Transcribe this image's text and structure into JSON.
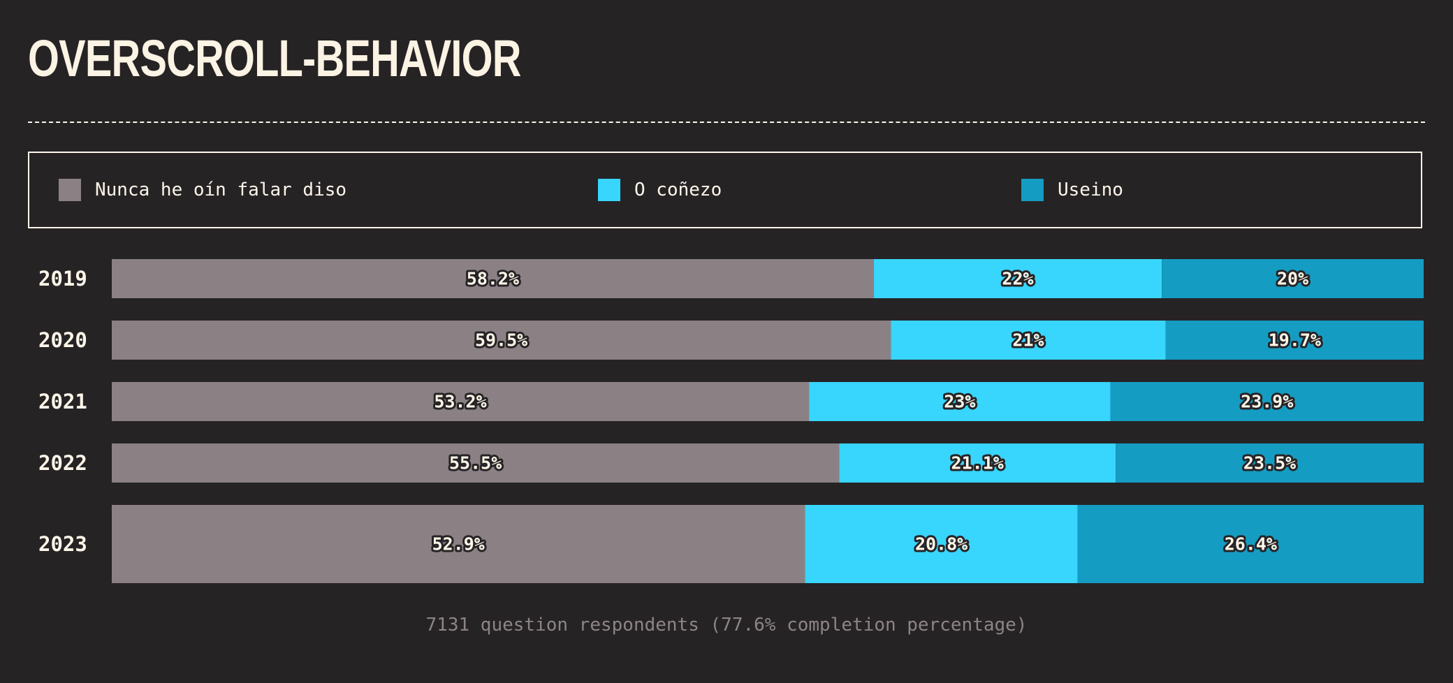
{
  "title": "OVERSCROLL-BEHAVIOR",
  "legend": [
    {
      "label": "Nunca he oín falar diso",
      "color": "#8b8185"
    },
    {
      "label": "O coñezo",
      "color": "#38d5fc"
    },
    {
      "label": "Useino",
      "color": "#159cc2"
    }
  ],
  "chart_data": {
    "type": "bar",
    "orientation": "horizontal",
    "stacked": true,
    "normalized": true,
    "categories": [
      "2019",
      "2020",
      "2021",
      "2022",
      "2023"
    ],
    "series": [
      {
        "name": "Nunca he oín falar diso",
        "values": [
          58.2,
          59.5,
          53.2,
          55.5,
          52.9
        ],
        "labels": [
          "58.2%",
          "59.5%",
          "53.2%",
          "55.5%",
          "52.9%"
        ]
      },
      {
        "name": "O coñezo",
        "values": [
          22,
          21,
          23,
          21.1,
          20.8
        ],
        "labels": [
          "22%",
          "21%",
          "23%",
          "21.1%",
          "20.8%"
        ]
      },
      {
        "name": "Useino",
        "values": [
          20,
          19.7,
          23.9,
          23.5,
          26.4
        ],
        "labels": [
          "20%",
          "19.7%",
          "23.9%",
          "23.5%",
          "26.4%"
        ]
      }
    ],
    "highlighted_category": "2023"
  },
  "footnote": "7131 question respondents (77.6% completion percentage)"
}
